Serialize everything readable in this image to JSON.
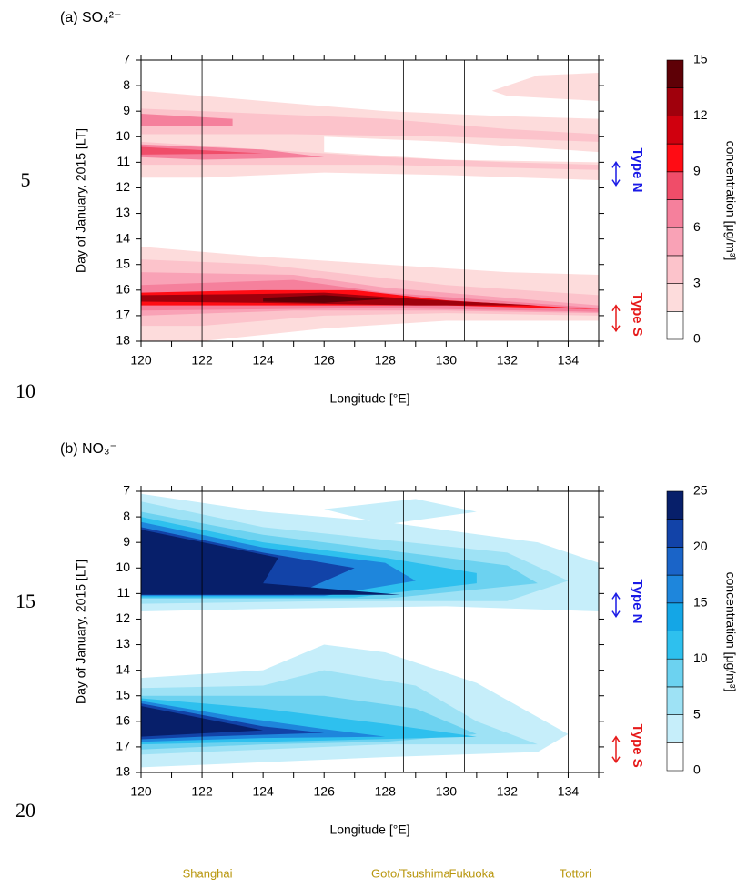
{
  "line_numbers": [
    5,
    10,
    15,
    20
  ],
  "locations": [
    "Shanghai",
    "Goto/Tsushima",
    "Fukuoka",
    "Tottori"
  ],
  "chart_data": [
    {
      "type": "contour",
      "title": "(a) SO₄²⁻",
      "x_label": "Longitude [°E]",
      "y_label": "Day of January, 2015 [LT]",
      "xlim": [
        120,
        135
      ],
      "xticks": [
        120,
        122,
        124,
        126,
        128,
        130,
        132,
        134
      ],
      "xticks_minor": [
        121,
        123,
        125,
        127,
        129,
        131,
        133,
        135
      ],
      "ylim": [
        7,
        18
      ],
      "y_inverted": true,
      "yticks": [
        7,
        8,
        9,
        10,
        11,
        12,
        13,
        14,
        15,
        16,
        17,
        18
      ],
      "vlines": [
        122,
        128.6,
        130.6,
        134
      ],
      "colorbar_label": "concentration [μg/m³]",
      "levels": [
        0,
        1.5,
        3,
        4.5,
        6,
        7.5,
        9,
        10.5,
        12,
        13.5,
        15
      ],
      "colors": [
        "#ffffff",
        "#fddcdc",
        "#fcc3cb",
        "#f9a2b6",
        "#f5809c",
        "#f04d69",
        "#ff0c14",
        "#d0000e",
        "#a0000c",
        "#5e0006"
      ],
      "cbticks": [
        0,
        3,
        6,
        9,
        12,
        15
      ],
      "contours": [
        {
          "level": 1.5,
          "points": [
            [
              120,
              8.2
            ],
            [
              124,
              8.6
            ],
            [
              128,
              9.0
            ],
            [
              132,
              9.2
            ],
            [
              135,
              9.3
            ],
            [
              135,
              11.7
            ],
            [
              130,
              11.5
            ],
            [
              126,
              11.4
            ],
            [
              122,
              11.6
            ],
            [
              120,
              11.6
            ]
          ]
        },
        {
          "level": 1.5,
          "points": [
            [
              131.5,
              8.2
            ],
            [
              133,
              7.6
            ],
            [
              135,
              7.5
            ],
            [
              135,
              8.6
            ],
            [
              132,
              8.4
            ]
          ]
        },
        {
          "level": 0,
          "points": [
            [
              126,
              10.0
            ],
            [
              130,
              10.2
            ],
            [
              135,
              10.6
            ],
            [
              135,
              11.0
            ],
            [
              130,
              10.9
            ],
            [
              126,
              10.6
            ]
          ]
        },
        {
          "level": 3,
          "points": [
            [
              120,
              8.9
            ],
            [
              124,
              9.1
            ],
            [
              128,
              9.3
            ],
            [
              132,
              9.7
            ],
            [
              135,
              9.9
            ],
            [
              135,
              10.2
            ],
            [
              130,
              10.0
            ],
            [
              125,
              9.9
            ],
            [
              120,
              9.9
            ]
          ]
        },
        {
          "level": 3,
          "points": [
            [
              120,
              10.2
            ],
            [
              124,
              10.5
            ],
            [
              128,
              10.8
            ],
            [
              132,
              11.0
            ],
            [
              135,
              11.1
            ],
            [
              135,
              11.3
            ],
            [
              128,
              11.1
            ],
            [
              122,
              11.1
            ],
            [
              120,
              11.1
            ]
          ]
        },
        {
          "level": 6,
          "points": [
            [
              120,
              9.1
            ],
            [
              123,
              9.3
            ],
            [
              123,
              9.6
            ],
            [
              120,
              9.6
            ]
          ]
        },
        {
          "level": 6,
          "points": [
            [
              120,
              10.3
            ],
            [
              124,
              10.5
            ],
            [
              126,
              10.8
            ],
            [
              122,
              10.9
            ],
            [
              120,
              10.8
            ]
          ]
        },
        {
          "level": 7.5,
          "points": [
            [
              120,
              10.4
            ],
            [
              124,
              10.65
            ],
            [
              120,
              10.7
            ]
          ]
        },
        {
          "level": 1.5,
          "points": [
            [
              120,
              14.3
            ],
            [
              124,
              14.7
            ],
            [
              128,
              15.0
            ],
            [
              132,
              15.3
            ],
            [
              135,
              15.4
            ],
            [
              135,
              17.2
            ],
            [
              130,
              17.2
            ],
            [
              126,
              17.5
            ],
            [
              122,
              18
            ],
            [
              120,
              18
            ]
          ]
        },
        {
          "level": 3,
          "points": [
            [
              120,
              14.8
            ],
            [
              124,
              15.0
            ],
            [
              127,
              15.4
            ],
            [
              130,
              15.8
            ],
            [
              135,
              16.2
            ],
            [
              135,
              17.0
            ],
            [
              130,
              16.9
            ],
            [
              126,
              17.0
            ],
            [
              122,
              17.4
            ],
            [
              120,
              17.4
            ]
          ]
        },
        {
          "level": 4.5,
          "points": [
            [
              120,
              15.3
            ],
            [
              125,
              15.4
            ],
            [
              128,
              15.9
            ],
            [
              132,
              16.3
            ],
            [
              135,
              16.6
            ],
            [
              135,
              16.9
            ],
            [
              130,
              16.8
            ],
            [
              125,
              16.8
            ],
            [
              120,
              17.0
            ]
          ]
        },
        {
          "level": 6,
          "points": [
            [
              120,
              15.8
            ],
            [
              125,
              15.6
            ],
            [
              128,
              16.1
            ],
            [
              135,
              16.7
            ],
            [
              135,
              16.85
            ],
            [
              128,
              16.7
            ],
            [
              120,
              16.8
            ]
          ]
        },
        {
          "level": 9,
          "points": [
            [
              120,
              16.1
            ],
            [
              124,
              16.0
            ],
            [
              127,
              16.0
            ],
            [
              130,
              16.4
            ],
            [
              135,
              16.75
            ],
            [
              130,
              16.6
            ],
            [
              126,
              16.6
            ],
            [
              120,
              16.6
            ]
          ]
        },
        {
          "level": 12,
          "points": [
            [
              120,
              16.2
            ],
            [
              124,
              16.15
            ],
            [
              126,
              16.1
            ],
            [
              129,
              16.35
            ],
            [
              133,
              16.6
            ],
            [
              129,
              16.6
            ],
            [
              124,
              16.5
            ],
            [
              120,
              16.45
            ]
          ]
        },
        {
          "level": 13.5,
          "points": [
            [
              124,
              16.3
            ],
            [
              126,
              16.2
            ],
            [
              128,
              16.35
            ],
            [
              126,
              16.5
            ],
            [
              124,
              16.45
            ]
          ]
        }
      ],
      "annotations": [
        {
          "text": "Type N",
          "color": "#1a1ae6",
          "from": 11,
          "to": 11.9
        },
        {
          "text": "Type S",
          "color": "#e61a1a",
          "from": 16.6,
          "to": 17.6
        }
      ]
    },
    {
      "type": "contour",
      "title": "(b) NO₃⁻",
      "x_label": "Longitude [°E]",
      "y_label": "Day of January, 2015 [LT]",
      "xlim": [
        120,
        135
      ],
      "xticks": [
        120,
        122,
        124,
        126,
        128,
        130,
        132,
        134
      ],
      "xticks_minor": [
        121,
        123,
        125,
        127,
        129,
        131,
        133,
        135
      ],
      "ylim": [
        7,
        18
      ],
      "y_inverted": true,
      "yticks": [
        7,
        8,
        9,
        10,
        11,
        12,
        13,
        14,
        15,
        16,
        17,
        18
      ],
      "vlines": [
        122,
        128.6,
        130.6,
        134
      ],
      "colorbar_label": "concentration [μg/m³]",
      "levels": [
        0,
        2.5,
        5,
        7.5,
        10,
        12.5,
        15,
        17.5,
        20,
        22.5,
        25
      ],
      "colors": [
        "#ffffff",
        "#c6eefa",
        "#9ee2f5",
        "#6cd2f0",
        "#2ec0ee",
        "#14a6e6",
        "#1e86dc",
        "#1a64c8",
        "#1243a8",
        "#071f6a"
      ],
      "cbticks": [
        0,
        5,
        10,
        15,
        20,
        25
      ],
      "contours": [
        {
          "level": 2.5,
          "points": [
            [
              120,
              7.1
            ],
            [
              124,
              7.8
            ],
            [
              128,
              8.2
            ],
            [
              133,
              9
            ],
            [
              135,
              9.8
            ],
            [
              135,
              11.7
            ],
            [
              130,
              11.5
            ],
            [
              124,
              11.6
            ],
            [
              120,
              11.7
            ]
          ]
        },
        {
          "level": 2.5,
          "points": [
            [
              126,
              7.7
            ],
            [
              129,
              7.3
            ],
            [
              131,
              7.8
            ],
            [
              128,
              8.3
            ]
          ]
        },
        {
          "level": 5,
          "points": [
            [
              120,
              7.4
            ],
            [
              124,
              8.4
            ],
            [
              128,
              8.9
            ],
            [
              132,
              9.4
            ],
            [
              134,
              10.5
            ],
            [
              132,
              11.3
            ],
            [
              126,
              11.3
            ],
            [
              120,
              11.4
            ]
          ]
        },
        {
          "level": 7.5,
          "points": [
            [
              120,
              7.8
            ],
            [
              124,
              8.7
            ],
            [
              128,
              9.3
            ],
            [
              132,
              9.9
            ],
            [
              133,
              10.6
            ],
            [
              128,
              11.2
            ],
            [
              120,
              11.2
            ]
          ]
        },
        {
          "level": 10,
          "points": [
            [
              120,
              8.0
            ],
            [
              124,
              9.0
            ],
            [
              128,
              9.6
            ],
            [
              131,
              10.2
            ],
            [
              131,
              10.6
            ],
            [
              127,
              11.15
            ],
            [
              120,
              11.15
            ]
          ]
        },
        {
          "level": 15,
          "points": [
            [
              120,
              8.2
            ],
            [
              124,
              9.2
            ],
            [
              128,
              9.8
            ],
            [
              129,
              10.5
            ],
            [
              126,
              11.1
            ],
            [
              120,
              11.1
            ]
          ]
        },
        {
          "level": 20,
          "points": [
            [
              120,
              8.4
            ],
            [
              124,
              9.4
            ],
            [
              127,
              10.0
            ],
            [
              125,
              11.05
            ],
            [
              120,
              11.05
            ]
          ]
        },
        {
          "level": 22.5,
          "points": [
            [
              120,
              8.5
            ],
            [
              124.5,
              9.6
            ],
            [
              124,
              10.6
            ],
            [
              128.5,
              11.05
            ],
            [
              120,
              11.05
            ]
          ]
        },
        {
          "level": 2.5,
          "points": [
            [
              120,
              14.3
            ],
            [
              124,
              14.0
            ],
            [
              126,
              13.0
            ],
            [
              128,
              13.3
            ],
            [
              131,
              14.5
            ],
            [
              134,
              16.5
            ],
            [
              133,
              17.2
            ],
            [
              128,
              17.4
            ],
            [
              124,
              17.6
            ],
            [
              120,
              17.8
            ]
          ]
        },
        {
          "level": 5,
          "points": [
            [
              120,
              14.7
            ],
            [
              124,
              14.6
            ],
            [
              126,
              14.0
            ],
            [
              129,
              14.6
            ],
            [
              131,
              16.0
            ],
            [
              133,
              16.9
            ],
            [
              128,
              16.9
            ],
            [
              124,
              17.1
            ],
            [
              120,
              17.3
            ]
          ]
        },
        {
          "level": 7.5,
          "points": [
            [
              120,
              15.0
            ],
            [
              126,
              15.0
            ],
            [
              129,
              15.5
            ],
            [
              131,
              16.5
            ],
            [
              128,
              16.8
            ],
            [
              124,
              16.9
            ],
            [
              120,
              17.1
            ]
          ]
        },
        {
          "level": 10,
          "points": [
            [
              120,
              15.1
            ],
            [
              124,
              15.5
            ],
            [
              128,
              16.1
            ],
            [
              131,
              16.6
            ],
            [
              126,
              16.75
            ],
            [
              120,
              16.9
            ]
          ]
        },
        {
          "level": 15,
          "points": [
            [
              120,
              15.2
            ],
            [
              123,
              15.8
            ],
            [
              126,
              16.3
            ],
            [
              128,
              16.6
            ],
            [
              124,
              16.65
            ],
            [
              120,
              16.8
            ]
          ]
        },
        {
          "level": 20,
          "points": [
            [
              120,
              15.3
            ],
            [
              124,
              16.2
            ],
            [
              126,
              16.45
            ],
            [
              122,
              16.6
            ],
            [
              120,
              16.7
            ]
          ]
        },
        {
          "level": 22.5,
          "points": [
            [
              120,
              15.4
            ],
            [
              124,
              16.35
            ],
            [
              120,
              16.6
            ]
          ]
        }
      ],
      "annotations": [
        {
          "text": "Type N",
          "color": "#1a1ae6",
          "from": 11,
          "to": 11.9
        },
        {
          "text": "Type S",
          "color": "#e61a1a",
          "from": 16.6,
          "to": 17.6
        }
      ]
    }
  ]
}
